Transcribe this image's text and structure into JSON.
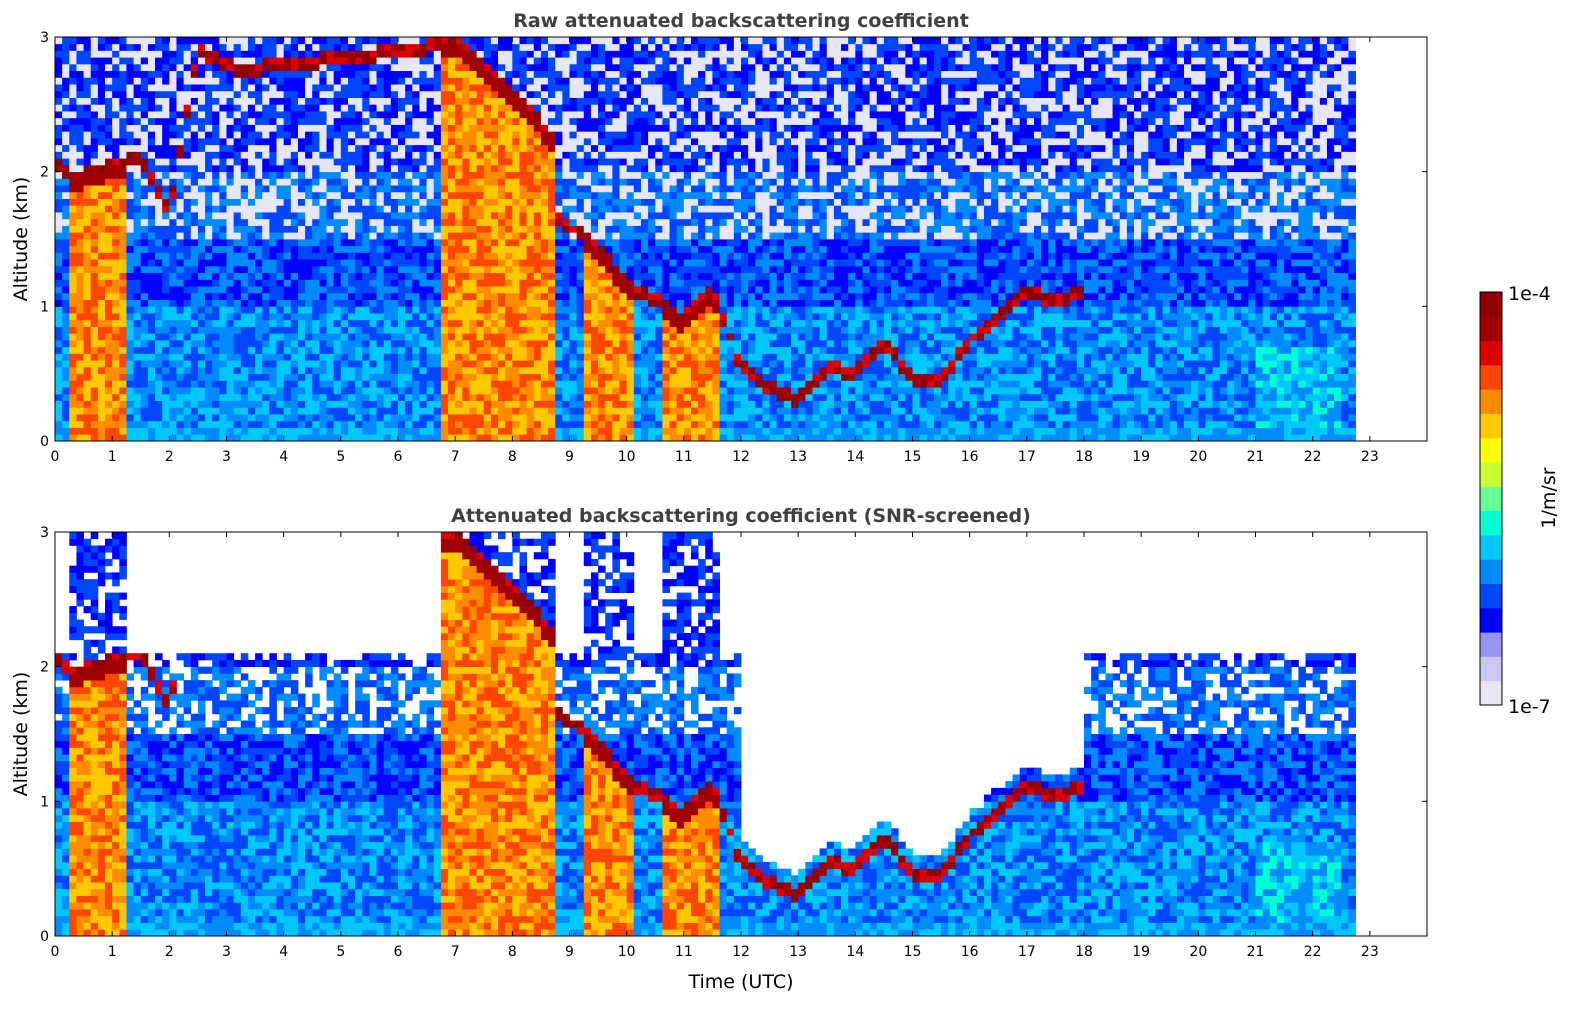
{
  "colormap": [
    "#e6e6f5",
    "#c8c8f0",
    "#9696f0",
    "#0000ff",
    "#0046ff",
    "#008cff",
    "#00c8ff",
    "#00ffd2",
    "#64ff96",
    "#c8ff32",
    "#ffff00",
    "#ffc800",
    "#ff8c00",
    "#ff4600",
    "#dc0000",
    "#a00000",
    "#8c0000"
  ],
  "colorbar": {
    "max_label": "1e-4",
    "min_label": "1e-7",
    "unit_label": "1/m/sr"
  },
  "chart_data": [
    {
      "type": "heatmap",
      "title": "Raw attenuated backscattering coefficient",
      "ylabel": "Altitude (km)",
      "xlabel": "",
      "xlim": [
        0,
        24
      ],
      "ylim": [
        0,
        3
      ],
      "xticks": [
        "0",
        "1",
        "2",
        "3",
        "4",
        "5",
        "6",
        "7",
        "8",
        "9",
        "10",
        "11",
        "12",
        "13",
        "14",
        "15",
        "16",
        "17",
        "18",
        "19",
        "20",
        "21",
        "22",
        "23"
      ],
      "yticks": [
        "0",
        "1",
        "2",
        "3"
      ],
      "color_scale": "log",
      "data_end_hour": 22.8,
      "cloud_layer_km": [
        {
          "t": 0.0,
          "z": 2.1
        },
        {
          "t": 0.3,
          "z": 1.95
        },
        {
          "t": 1.5,
          "z": 2.1
        },
        {
          "t": 2.0,
          "z": 1.7
        },
        {
          "t": 2.5,
          "z": 2.9
        },
        {
          "t": 3.2,
          "z": 2.75
        },
        {
          "t": 7.0,
          "z": 2.95
        },
        {
          "t": 8.0,
          "z": 2.6
        },
        {
          "t": 8.7,
          "z": 2.25
        },
        {
          "t": 8.8,
          "z": 1.65
        },
        {
          "t": 9.5,
          "z": 1.45
        },
        {
          "t": 10.0,
          "z": 1.15
        },
        {
          "t": 10.5,
          "z": 1.05
        },
        {
          "t": 11.0,
          "z": 0.9
        },
        {
          "t": 11.5,
          "z": 1.15
        },
        {
          "t": 12.0,
          "z": 0.55
        },
        {
          "t": 12.5,
          "z": 0.4
        },
        {
          "t": 13.0,
          "z": 0.3
        },
        {
          "t": 13.5,
          "z": 0.55
        },
        {
          "t": 14.0,
          "z": 0.5
        },
        {
          "t": 14.5,
          "z": 0.75
        },
        {
          "t": 15.0,
          "z": 0.45
        },
        {
          "t": 15.5,
          "z": 0.45
        },
        {
          "t": 16.0,
          "z": 0.75
        },
        {
          "t": 16.5,
          "z": 0.95
        },
        {
          "t": 17.0,
          "z": 1.1
        },
        {
          "t": 17.5,
          "z": 1.05
        },
        {
          "t": 18.0,
          "z": 1.1
        }
      ]
    },
    {
      "type": "heatmap",
      "title": "Attenuated backscattering coefficient (SNR-screened)",
      "ylabel": "Altitude (km)",
      "xlabel": "Time (UTC)",
      "xlim": [
        0,
        24
      ],
      "ylim": [
        0,
        3
      ],
      "xticks": [
        "0",
        "1",
        "2",
        "3",
        "4",
        "5",
        "6",
        "7",
        "8",
        "9",
        "10",
        "11",
        "12",
        "13",
        "14",
        "15",
        "16",
        "17",
        "18",
        "19",
        "20",
        "21",
        "22",
        "23"
      ],
      "yticks": [
        "0",
        "1",
        "2",
        "3"
      ],
      "color_scale": "log",
      "data_end_hour": 22.8,
      "screened": true
    }
  ]
}
